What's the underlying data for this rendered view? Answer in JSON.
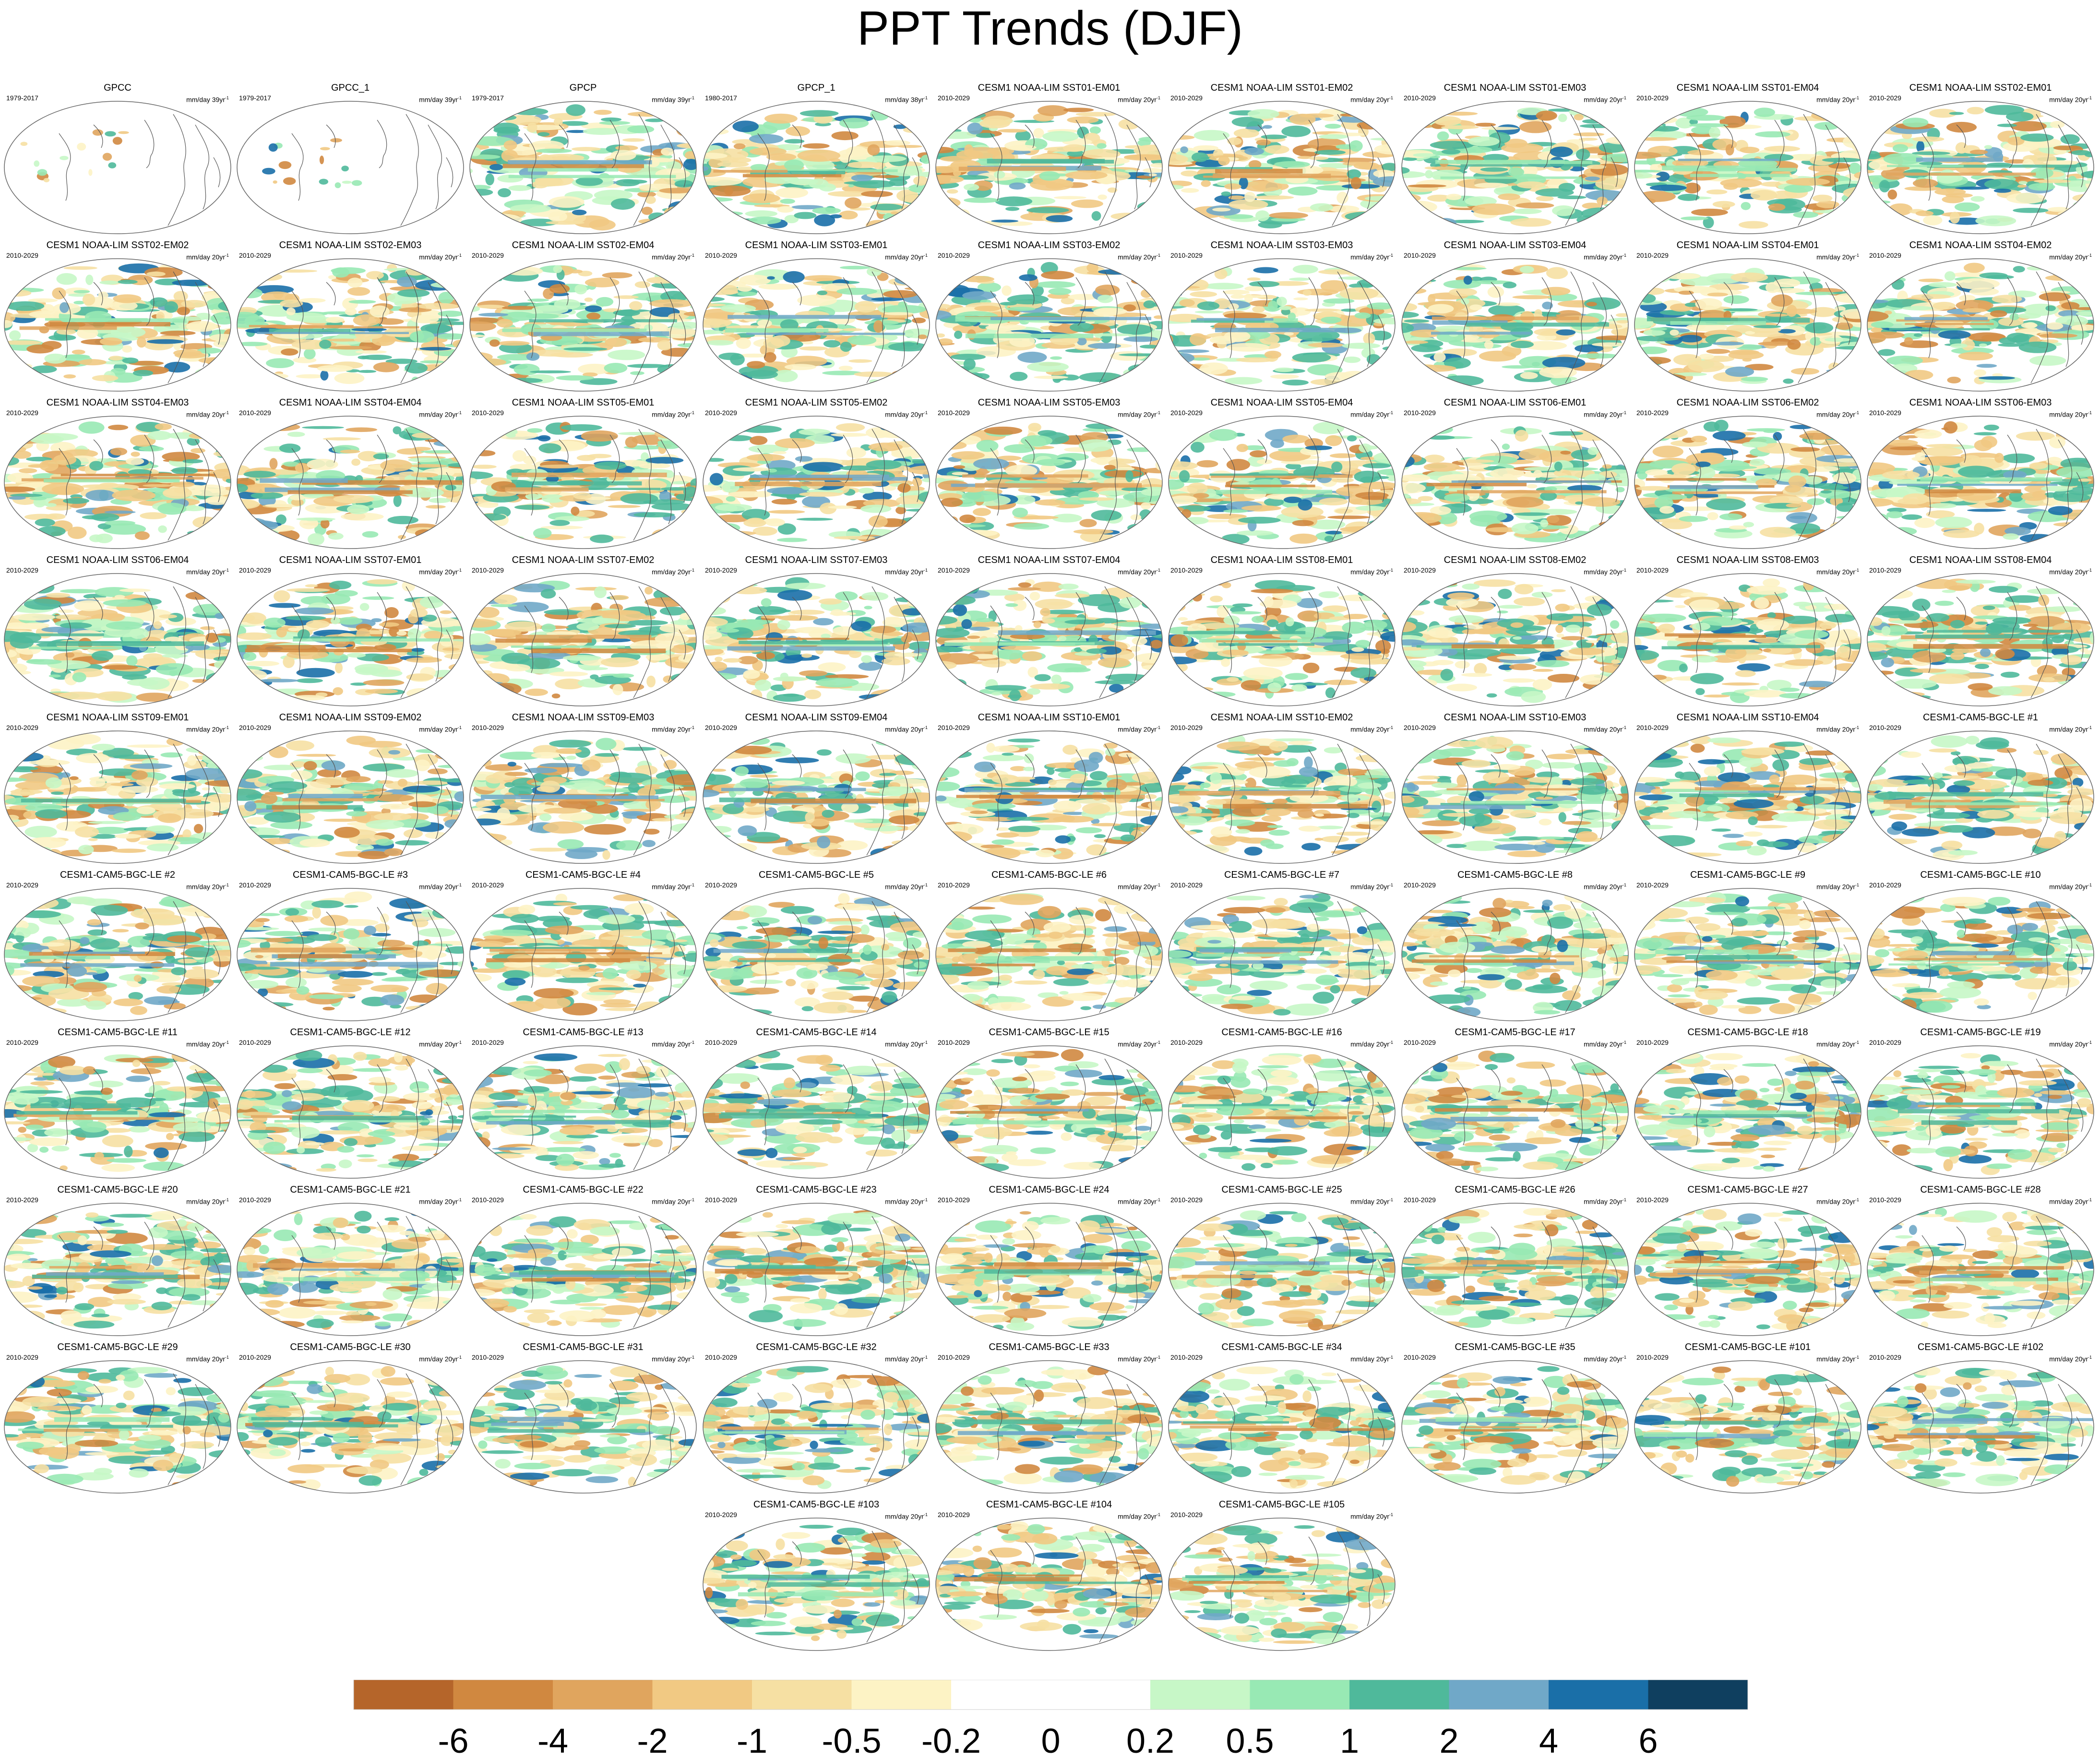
{
  "title": "PPT Trends (DJF)",
  "default_units": "mm/day 20yr",
  "units_superscript": "-1",
  "panels": [
    {
      "title": "GPCC",
      "period": "1979-2017",
      "units": "mm/day 39yr"
    },
    {
      "title": "GPCC_1",
      "period": "1979-2017",
      "units": "mm/day 39yr"
    },
    {
      "title": "GPCP",
      "period": "1979-2017",
      "units": "mm/day 39yr"
    },
    {
      "title": "GPCP_1",
      "period": "1980-2017",
      "units": "mm/day 38yr"
    },
    {
      "title": "CESM1 NOAA-LIM SST01-EM01",
      "period": "2010-2029"
    },
    {
      "title": "CESM1 NOAA-LIM SST01-EM02",
      "period": "2010-2029"
    },
    {
      "title": "CESM1 NOAA-LIM SST01-EM03",
      "period": "2010-2029"
    },
    {
      "title": "CESM1 NOAA-LIM SST01-EM04",
      "period": "2010-2029"
    },
    {
      "title": "CESM1 NOAA-LIM SST02-EM01",
      "period": "2010-2029"
    },
    {
      "title": "CESM1 NOAA-LIM SST02-EM02",
      "period": "2010-2029"
    },
    {
      "title": "CESM1 NOAA-LIM SST02-EM03",
      "period": "2010-2029"
    },
    {
      "title": "CESM1 NOAA-LIM SST02-EM04",
      "period": "2010-2029"
    },
    {
      "title": "CESM1 NOAA-LIM SST03-EM01",
      "period": "2010-2029"
    },
    {
      "title": "CESM1 NOAA-LIM SST03-EM02",
      "period": "2010-2029"
    },
    {
      "title": "CESM1 NOAA-LIM SST03-EM03",
      "period": "2010-2029"
    },
    {
      "title": "CESM1 NOAA-LIM SST03-EM04",
      "period": "2010-2029"
    },
    {
      "title": "CESM1 NOAA-LIM SST04-EM01",
      "period": "2010-2029"
    },
    {
      "title": "CESM1 NOAA-LIM SST04-EM02",
      "period": "2010-2029"
    },
    {
      "title": "CESM1 NOAA-LIM SST04-EM03",
      "period": "2010-2029"
    },
    {
      "title": "CESM1 NOAA-LIM SST04-EM04",
      "period": "2010-2029"
    },
    {
      "title": "CESM1 NOAA-LIM SST05-EM01",
      "period": "2010-2029"
    },
    {
      "title": "CESM1 NOAA-LIM SST05-EM02",
      "period": "2010-2029"
    },
    {
      "title": "CESM1 NOAA-LIM SST05-EM03",
      "period": "2010-2029"
    },
    {
      "title": "CESM1 NOAA-LIM SST05-EM04",
      "period": "2010-2029"
    },
    {
      "title": "CESM1 NOAA-LIM SST06-EM01",
      "period": "2010-2029"
    },
    {
      "title": "CESM1 NOAA-LIM SST06-EM02",
      "period": "2010-2029"
    },
    {
      "title": "CESM1 NOAA-LIM SST06-EM03",
      "period": "2010-2029"
    },
    {
      "title": "CESM1 NOAA-LIM SST06-EM04",
      "period": "2010-2029"
    },
    {
      "title": "CESM1 NOAA-LIM SST07-EM01",
      "period": "2010-2029"
    },
    {
      "title": "CESM1 NOAA-LIM SST07-EM02",
      "period": "2010-2029"
    },
    {
      "title": "CESM1 NOAA-LIM SST07-EM03",
      "period": "2010-2029"
    },
    {
      "title": "CESM1 NOAA-LIM SST07-EM04",
      "period": "2010-2029"
    },
    {
      "title": "CESM1 NOAA-LIM SST08-EM01",
      "period": "2010-2029"
    },
    {
      "title": "CESM1 NOAA-LIM SST08-EM02",
      "period": "2010-2029"
    },
    {
      "title": "CESM1 NOAA-LIM SST08-EM03",
      "period": "2010-2029"
    },
    {
      "title": "CESM1 NOAA-LIM SST08-EM04",
      "period": "2010-2029"
    },
    {
      "title": "CESM1 NOAA-LIM SST09-EM01",
      "period": "2010-2029"
    },
    {
      "title": "CESM1 NOAA-LIM SST09-EM02",
      "period": "2010-2029"
    },
    {
      "title": "CESM1 NOAA-LIM SST09-EM03",
      "period": "2010-2029"
    },
    {
      "title": "CESM1 NOAA-LIM SST09-EM04",
      "period": "2010-2029"
    },
    {
      "title": "CESM1 NOAA-LIM SST10-EM01",
      "period": "2010-2029"
    },
    {
      "title": "CESM1 NOAA-LIM SST10-EM02",
      "period": "2010-2029"
    },
    {
      "title": "CESM1 NOAA-LIM SST10-EM03",
      "period": "2010-2029"
    },
    {
      "title": "CESM1 NOAA-LIM SST10-EM04",
      "period": "2010-2029"
    },
    {
      "title": "CESM1-CAM5-BGC-LE #1",
      "period": "2010-2029"
    },
    {
      "title": "CESM1-CAM5-BGC-LE #2",
      "period": "2010-2029"
    },
    {
      "title": "CESM1-CAM5-BGC-LE #3",
      "period": "2010-2029"
    },
    {
      "title": "CESM1-CAM5-BGC-LE #4",
      "period": "2010-2029"
    },
    {
      "title": "CESM1-CAM5-BGC-LE #5",
      "period": "2010-2029"
    },
    {
      "title": "CESM1-CAM5-BGC-LE #6",
      "period": "2010-2029"
    },
    {
      "title": "CESM1-CAM5-BGC-LE #7",
      "period": "2010-2029"
    },
    {
      "title": "CESM1-CAM5-BGC-LE #8",
      "period": "2010-2029"
    },
    {
      "title": "CESM1-CAM5-BGC-LE #9",
      "period": "2010-2029"
    },
    {
      "title": "CESM1-CAM5-BGC-LE #10",
      "period": "2010-2029"
    },
    {
      "title": "CESM1-CAM5-BGC-LE #11",
      "period": "2010-2029"
    },
    {
      "title": "CESM1-CAM5-BGC-LE #12",
      "period": "2010-2029"
    },
    {
      "title": "CESM1-CAM5-BGC-LE #13",
      "period": "2010-2029"
    },
    {
      "title": "CESM1-CAM5-BGC-LE #14",
      "period": "2010-2029"
    },
    {
      "title": "CESM1-CAM5-BGC-LE #15",
      "period": "2010-2029"
    },
    {
      "title": "CESM1-CAM5-BGC-LE #16",
      "period": "2010-2029"
    },
    {
      "title": "CESM1-CAM5-BGC-LE #17",
      "period": "2010-2029"
    },
    {
      "title": "CESM1-CAM5-BGC-LE #18",
      "period": "2010-2029"
    },
    {
      "title": "CESM1-CAM5-BGC-LE #19",
      "period": "2010-2029"
    },
    {
      "title": "CESM1-CAM5-BGC-LE #20",
      "period": "2010-2029"
    },
    {
      "title": "CESM1-CAM5-BGC-LE #21",
      "period": "2010-2029"
    },
    {
      "title": "CESM1-CAM5-BGC-LE #22",
      "period": "2010-2029"
    },
    {
      "title": "CESM1-CAM5-BGC-LE #23",
      "period": "2010-2029"
    },
    {
      "title": "CESM1-CAM5-BGC-LE #24",
      "period": "2010-2029"
    },
    {
      "title": "CESM1-CAM5-BGC-LE #25",
      "period": "2010-2029"
    },
    {
      "title": "CESM1-CAM5-BGC-LE #26",
      "period": "2010-2029"
    },
    {
      "title": "CESM1-CAM5-BGC-LE #27",
      "period": "2010-2029"
    },
    {
      "title": "CESM1-CAM5-BGC-LE #28",
      "period": "2010-2029"
    },
    {
      "title": "CESM1-CAM5-BGC-LE #29",
      "period": "2010-2029"
    },
    {
      "title": "CESM1-CAM5-BGC-LE #30",
      "period": "2010-2029"
    },
    {
      "title": "CESM1-CAM5-BGC-LE #31",
      "period": "2010-2029"
    },
    {
      "title": "CESM1-CAM5-BGC-LE #32",
      "period": "2010-2029"
    },
    {
      "title": "CESM1-CAM5-BGC-LE #33",
      "period": "2010-2029"
    },
    {
      "title": "CESM1-CAM5-BGC-LE #34",
      "period": "2010-2029"
    },
    {
      "title": "CESM1-CAM5-BGC-LE #35",
      "period": "2010-2029"
    },
    {
      "title": "CESM1-CAM5-BGC-LE #101",
      "period": "2010-2029"
    },
    {
      "title": "CESM1-CAM5-BGC-LE #102",
      "period": "2010-2029"
    },
    {
      "title": "CESM1-CAM5-BGC-LE #103",
      "period": "2010-2029"
    },
    {
      "title": "CESM1-CAM5-BGC-LE #104",
      "period": "2010-2029"
    },
    {
      "title": "CESM1-CAM5-BGC-LE #105",
      "period": "2010-2029"
    }
  ],
  "chart_data": {
    "type": "heatmap",
    "title": "PPT Trends (DJF)",
    "projection": "Robinson",
    "colorbar": {
      "tick_labels": [
        "-6",
        "-4",
        "-2",
        "-1",
        "-0.5",
        "-0.2",
        "0",
        "0.2",
        "0.5",
        "1",
        "2",
        "4",
        "6"
      ],
      "colors": [
        "#b5652a",
        "#d08840",
        "#e0a55e",
        "#f1c983",
        "#f6e0a3",
        "#fdf3c5",
        "#ffffff",
        "#ffffff",
        "#c7f7c7",
        "#98e9b4",
        "#4fb99b",
        "#70a8c8",
        "#1a6fa8",
        "#0f3f5f"
      ]
    }
  }
}
